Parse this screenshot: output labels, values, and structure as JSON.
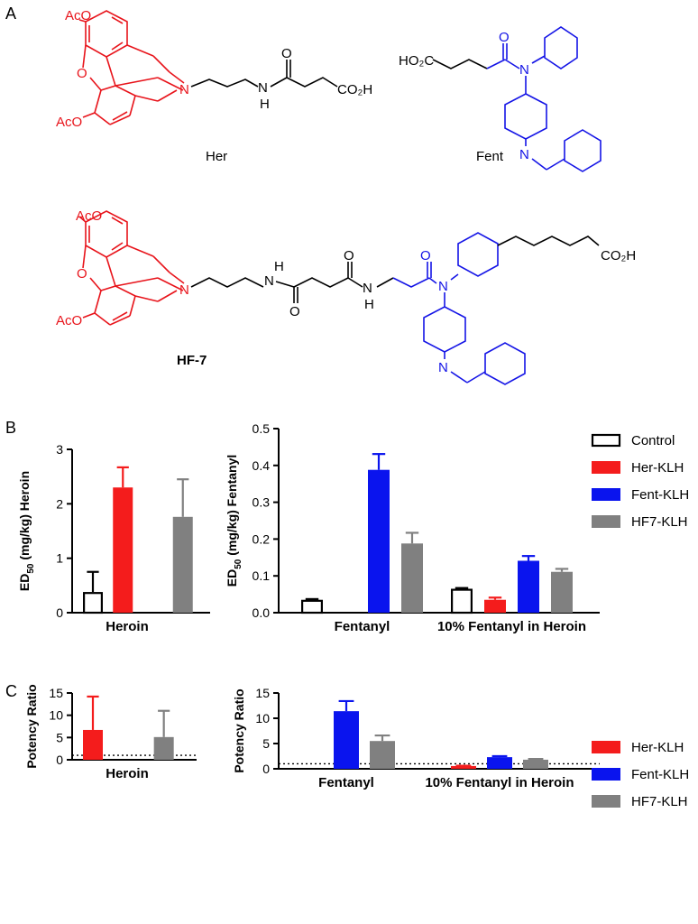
{
  "panels": {
    "a": "A",
    "b": "B",
    "c": "C"
  },
  "colors": {
    "control": "#000000",
    "her": "#f41c1c",
    "fent": "#0a14ee",
    "hf7": "#808080",
    "her_structure": "#e8141b",
    "fent_structure": "#1414e6"
  },
  "structures": {
    "her": {
      "name": "Her",
      "labels": {
        "aco_top": "AcO",
        "o_ring": "O",
        "aco_bottom": "AcO",
        "n": "N",
        "amide_n": "N",
        "amide_h": "H",
        "carbonyl_o": "O",
        "acid": "CO₂H"
      }
    },
    "fent": {
      "name": "Fent",
      "labels": {
        "acid": "HO₂C",
        "carbonyl_o": "O",
        "n_amide": "N",
        "n_pip": "N"
      }
    },
    "hf7": {
      "name": "HF-7",
      "labels": {
        "aco_top": "AcO",
        "o_ring": "O",
        "aco_bottom": "AcO",
        "n": "N",
        "nh1_h": "H",
        "nh1_n": "N",
        "o1": "O",
        "o2": "O",
        "nh2_n": "N",
        "nh2_h": "H",
        "o3": "O",
        "n_amide": "N",
        "acid": "CO₂H",
        "n_pip": "N"
      }
    }
  },
  "legend_b": [
    {
      "label": "Control",
      "style": "control"
    },
    {
      "label": "Her-KLH",
      "style": "her"
    },
    {
      "label": "Fent-KLH",
      "style": "fent"
    },
    {
      "label": "HF7-KLH",
      "style": "hf7"
    }
  ],
  "legend_c": [
    {
      "label": "Her-KLH",
      "style": "her"
    },
    {
      "label": "Fent-KLH",
      "style": "fent"
    },
    {
      "label": "HF7-KLH",
      "style": "hf7"
    }
  ],
  "chart_data": [
    {
      "id": "b-heroin",
      "type": "bar",
      "ylabel": "ED50 (mg/kg) Heroin",
      "ylim": [
        0,
        3
      ],
      "yticks": [
        0,
        1,
        2,
        3
      ],
      "categories": [
        "Heroin"
      ],
      "series": [
        {
          "name": "Control",
          "style": "control",
          "values": [
            0.38
          ],
          "errors": [
            0.37
          ]
        },
        {
          "name": "Her-KLH",
          "style": "her",
          "values": [
            2.3
          ],
          "errors": [
            0.37
          ]
        },
        {
          "name": "Fent-KLH",
          "style": "fent",
          "values": [
            null
          ],
          "errors": [
            null
          ]
        },
        {
          "name": "HF7-KLH",
          "style": "hf7",
          "values": [
            1.76
          ],
          "errors": [
            0.69
          ]
        }
      ]
    },
    {
      "id": "b-fentanyl",
      "type": "bar",
      "ylabel": "ED50 (mg/kg) Fentanyl",
      "ylim": [
        0,
        0.5
      ],
      "yticks": [
        0.0,
        0.1,
        0.2,
        0.3,
        0.4,
        0.5
      ],
      "categories": [
        "Fentanyl",
        "10% Fentanyl in Heroin"
      ],
      "series": [
        {
          "name": "Control",
          "style": "control",
          "values": [
            0.035,
            0.065
          ],
          "errors": [
            0.002,
            0.002
          ]
        },
        {
          "name": "Her-KLH",
          "style": "her",
          "values": [
            null,
            0.035
          ],
          "errors": [
            null,
            0.006
          ]
        },
        {
          "name": "Fent-KLH",
          "style": "fent",
          "values": [
            0.388,
            0.141
          ],
          "errors": [
            0.043,
            0.013
          ]
        },
        {
          "name": "HF7-KLH",
          "style": "hf7",
          "values": [
            0.188,
            0.111
          ],
          "errors": [
            0.029,
            0.008
          ]
        }
      ]
    },
    {
      "id": "c-heroin",
      "type": "bar",
      "ylabel": "Potency Ratio",
      "ylim": [
        0,
        15
      ],
      "yticks": [
        0,
        5,
        10,
        15
      ],
      "reference_line": 1,
      "categories": [
        "Heroin"
      ],
      "series": [
        {
          "name": "Her-KLH",
          "style": "her",
          "values": [
            6.7
          ],
          "errors": [
            7.5
          ]
        },
        {
          "name": "Fent-KLH",
          "style": "fent",
          "values": [
            null
          ],
          "errors": [
            null
          ]
        },
        {
          "name": "HF7-KLH",
          "style": "hf7",
          "values": [
            5.1
          ],
          "errors": [
            5.9
          ]
        }
      ]
    },
    {
      "id": "c-fentanyl",
      "type": "bar",
      "ylabel": "Potency Ratio",
      "ylim": [
        0,
        15
      ],
      "yticks": [
        0,
        5,
        10,
        15
      ],
      "reference_line": 1,
      "categories": [
        "Fentanyl",
        "10% Fentanyl in Heroin"
      ],
      "series": [
        {
          "name": "Her-KLH",
          "style": "her",
          "values": [
            null,
            0.55
          ],
          "errors": [
            null,
            0.05
          ]
        },
        {
          "name": "Fent-KLH",
          "style": "fent",
          "values": [
            11.4,
            2.3
          ],
          "errors": [
            2.0,
            0.2
          ]
        },
        {
          "name": "HF7-KLH",
          "style": "hf7",
          "values": [
            5.5,
            1.8
          ],
          "errors": [
            1.1,
            0.15
          ]
        }
      ]
    }
  ]
}
